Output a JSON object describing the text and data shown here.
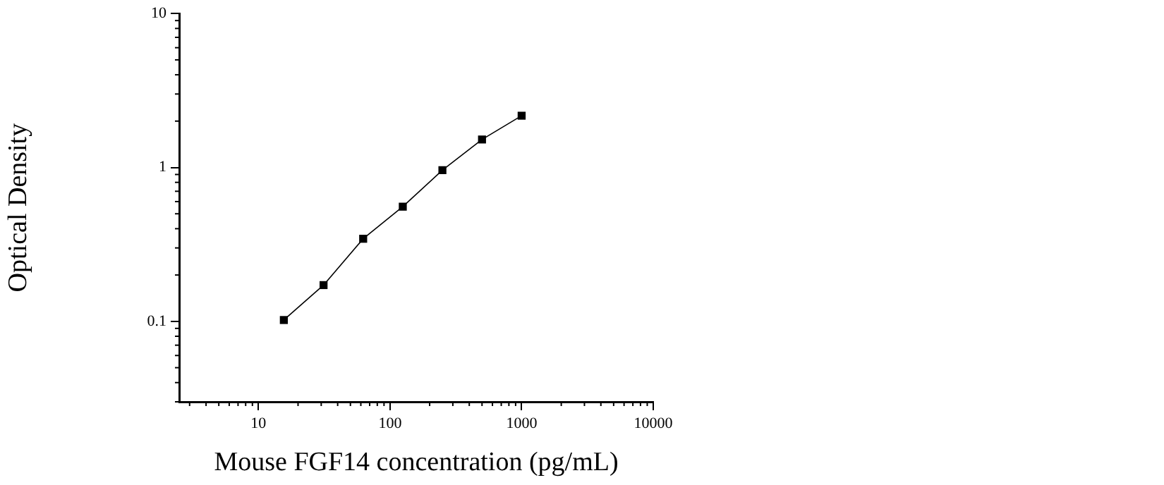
{
  "chart_data": {
    "type": "line",
    "xlabel": "Mouse FGF14 concentration (pg/mL)",
    "ylabel": "Optical Density",
    "x": [
      15.6,
      31.25,
      62.5,
      125,
      250,
      500,
      1000
    ],
    "series": [
      {
        "color": "#000000",
        "values": [
          0.102,
          0.172,
          0.344,
          0.556,
          0.96,
          1.52,
          2.17
        ]
      }
    ],
    "log": "xy",
    "xlim": [
      2.5,
      10000
    ],
    "xticks": [
      10,
      100,
      1000,
      10000
    ],
    "ylim": [
      0.03,
      10
    ],
    "yticks": [
      0.1,
      1,
      10
    ],
    "grid": false,
    "legend": false,
    "marker": "square",
    "line_style": "solid"
  }
}
